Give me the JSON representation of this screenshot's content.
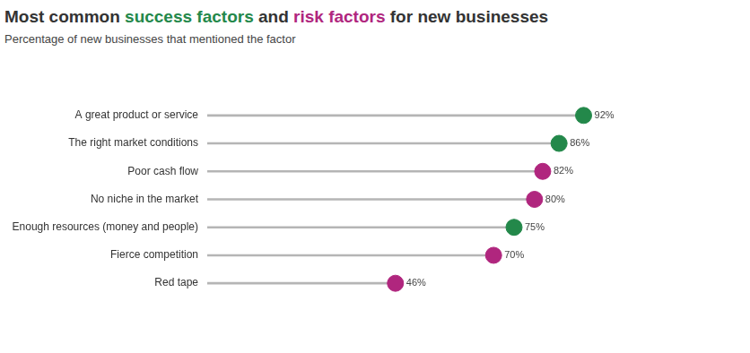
{
  "chart_data": {
    "type": "dot",
    "title": "Most common success factors and risk factors for new businesses",
    "subtitle": "Percentage of new businesses that mentioned the factor",
    "orientation": "horizontal",
    "categories": [
      "A great product or service",
      "The right market conditions",
      "Poor cash flow",
      "No niche in the market",
      "Enough resources (money and people)",
      "Fierce competition",
      "Red tape"
    ],
    "series": [
      {
        "name": "success factors",
        "color": "#23884a",
        "values": [
          92,
          86,
          null,
          null,
          75,
          null,
          null
        ],
        "value_labels": [
          "92%",
          "86%",
          null,
          null,
          "75%",
          null,
          null
        ]
      },
      {
        "name": "risk factors",
        "color": "#b0267e",
        "values": [
          null,
          null,
          82,
          80,
          null,
          70,
          46
        ],
        "value_labels": [
          null,
          null,
          "82%",
          "80%",
          null,
          "70%",
          "46%"
        ]
      }
    ],
    "xlim": [
      0,
      100
    ],
    "tick_labels": "y",
    "data_labels": true,
    "grid": false
  }
}
